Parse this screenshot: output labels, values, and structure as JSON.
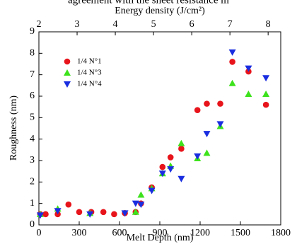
{
  "caption": "agreement with the sheet resistance m",
  "chart_data": {
    "type": "scatter",
    "xlabel": "Melt Depth (nm)",
    "ylabel": "Roughness (nm)",
    "x2label": "Energy density (J/cm²)",
    "xlim": [
      0,
      1800
    ],
    "xticks": [
      0,
      300,
      600,
      900,
      1200,
      1500,
      1800
    ],
    "x2lim": [
      2,
      8.33
    ],
    "x2ticks": [
      2,
      3,
      4,
      5,
      6,
      7,
      8
    ],
    "ylim": [
      0,
      9
    ],
    "yticks": [
      0,
      1,
      2,
      3,
      4,
      5,
      6,
      7,
      8,
      9
    ],
    "legend": "upper left",
    "series": [
      {
        "name": "1/4 N°1",
        "color": "#e8141b",
        "marker": "circle",
        "x": [
          10,
          50,
          140,
          220,
          300,
          390,
          480,
          560,
          640,
          720,
          760,
          840,
          920,
          980,
          1060,
          1180,
          1250,
          1350,
          1440,
          1560,
          1690
        ],
        "values": [
          0.5,
          0.5,
          0.5,
          0.95,
          0.6,
          0.6,
          0.6,
          0.5,
          0.55,
          0.6,
          1.0,
          1.75,
          2.7,
          3.15,
          3.55,
          5.35,
          5.65,
          5.65,
          7.6,
          7.15,
          5.6
        ]
      },
      {
        "name": "1/4 N°3",
        "color": "#3de21c",
        "marker": "triangle-up",
        "x": [
          10,
          140,
          380,
          720,
          760,
          840,
          920,
          980,
          1060,
          1180,
          1250,
          1350,
          1440,
          1560,
          1690
        ],
        "values": [
          0.5,
          0.75,
          0.55,
          0.6,
          1.4,
          1.7,
          2.4,
          2.75,
          3.8,
          3.1,
          3.35,
          4.6,
          6.6,
          6.1,
          6.1
        ]
      },
      {
        "name": "1/4 N°4",
        "color": "#1a2ee0",
        "marker": "triangle-down",
        "x": [
          10,
          140,
          380,
          640,
          720,
          760,
          840,
          920,
          980,
          1060,
          1180,
          1250,
          1350,
          1440,
          1560,
          1690
        ],
        "values": [
          0.45,
          0.65,
          0.5,
          0.55,
          1.0,
          0.95,
          1.6,
          2.4,
          2.6,
          2.15,
          3.2,
          4.25,
          4.7,
          8.05,
          7.3,
          6.85
        ]
      }
    ]
  }
}
